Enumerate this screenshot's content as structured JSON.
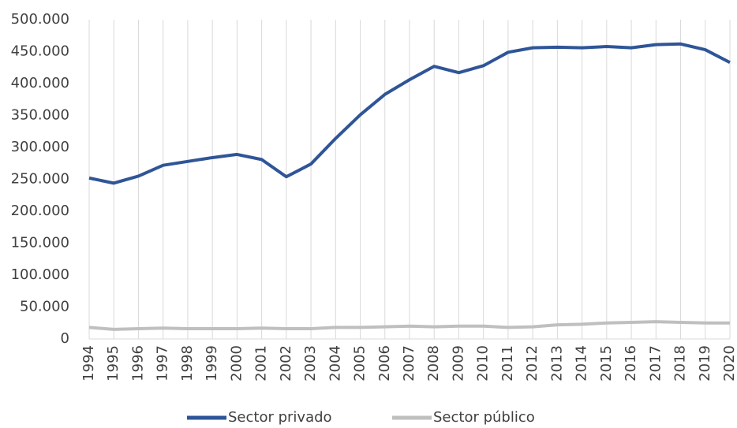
{
  "chart_data": {
    "type": "line",
    "categories": [
      "1994",
      "1995",
      "1996",
      "1997",
      "1998",
      "1999",
      "2000",
      "2001",
      "2002",
      "2003",
      "2004",
      "2005",
      "2006",
      "2007",
      "2008",
      "2009",
      "2010",
      "2011",
      "2012",
      "2013",
      "2014",
      "2015",
      "2016",
      "2017",
      "2018",
      "2019",
      "2020"
    ],
    "series": [
      {
        "name": "Sector privado",
        "color": "#2f5597",
        "values": [
          252000,
          244000,
          255000,
          272000,
          278000,
          284000,
          289000,
          281000,
          254000,
          274000,
          314000,
          351000,
          383000,
          406000,
          427000,
          417000,
          428000,
          449000,
          456000,
          457000,
          456000,
          458000,
          456000,
          461000,
          462000,
          453000,
          433000
        ]
      },
      {
        "name": "Sector público",
        "color": "#bfbfbf",
        "values": [
          18000,
          15000,
          16000,
          17000,
          16000,
          16000,
          16000,
          17000,
          16000,
          16000,
          18000,
          18000,
          19000,
          20000,
          19000,
          20000,
          20000,
          18000,
          19000,
          22000,
          23000,
          25000,
          26000,
          27000,
          26000,
          25000,
          25000
        ]
      }
    ],
    "ylim": [
      0,
      500000
    ],
    "yticks": [
      0,
      {
        "value": 50000,
        "label": "50.000"
      },
      {
        "value": 100000,
        "label": "100.000"
      },
      {
        "value": 150000,
        "label": "150.000"
      },
      {
        "value": 200000,
        "label": "200.000"
      },
      {
        "value": 250000,
        "label": "250.000"
      },
      {
        "value": 300000,
        "label": "300.000"
      },
      {
        "value": 350000,
        "label": "350.000"
      },
      {
        "value": 400000,
        "label": "400.000"
      },
      {
        "value": 450000,
        "label": "450.000"
      },
      {
        "value": 500000,
        "label": "500.000"
      }
    ],
    "grid": "x",
    "legend": "bottom"
  }
}
